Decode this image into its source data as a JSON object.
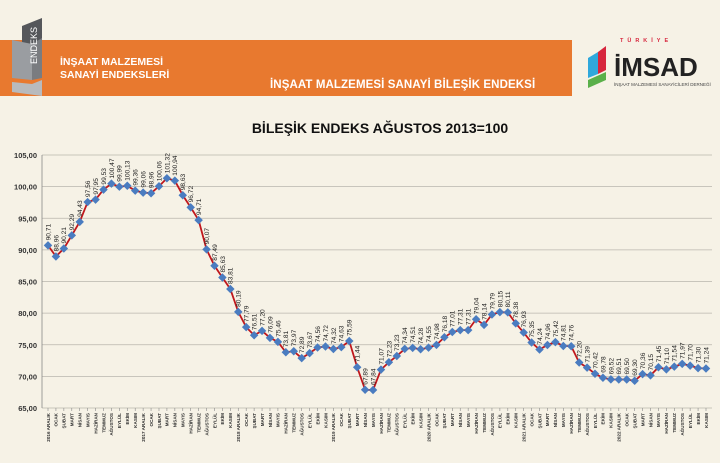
{
  "header": {
    "logo_text": "ENDEKS",
    "subtitle_line1": "İNŞAAT MALZEMESİ",
    "subtitle_line2": "SANAYİ ENDEKSLERİ",
    "band_title": "İNŞAAT MALZEMESİ SANAYİ BİLEŞİK ENDEKSİ",
    "brand_logo_text": "TÜRKİYE İMSAD",
    "brand_logo_caption": "İNŞAAT MALZEMESİ SANAYİCİLERİ DERNEĞİ",
    "accent_color": "#e8792f"
  },
  "chart_data": {
    "type": "line",
    "title": "BİLEŞİK ENDEKS AĞUSTOS 2013=100",
    "xlabel": "",
    "ylabel": "",
    "ylim": [
      65,
      105
    ],
    "yticks": [
      "65,00",
      "70,00",
      "75,00",
      "80,00",
      "85,00",
      "90,00",
      "95,00",
      "100,00",
      "105,00"
    ],
    "grid": true,
    "line_color": "#c0171c",
    "marker_color": "#4a7cc0",
    "categories": [
      "2016 ARALIK",
      "OCAK",
      "ŞUBAT",
      "MART",
      "NİSAN",
      "MAYIS",
      "HAZİRAN",
      "TEMMUZ",
      "AĞUSTOS",
      "EYLÜL",
      "EKİM",
      "KASIM",
      "2017 ARALIK",
      "OCAK",
      "ŞUBAT",
      "MART",
      "NİSAN",
      "MAYIS",
      "HAZİRAN",
      "TEMMUZ",
      "AĞUSTOS",
      "EYLÜL",
      "EKİM",
      "KASIM",
      "2018 ARALIK",
      "OCAK",
      "ŞUBAT",
      "MART",
      "NİSAN",
      "MAYIS",
      "HAZİRAN",
      "TEMMUZ",
      "AĞUSTOS",
      "EYLÜL",
      "EKİM",
      "KASIM",
      "2019 ARALIK",
      "OCAK",
      "ŞUBAT",
      "MART",
      "NİSAN",
      "MAYIS",
      "HAZİRAN",
      "TEMMUZ",
      "AĞUSTOS",
      "EYLÜL",
      "EKİM",
      "KASIM",
      "2020 ARALIK",
      "OCAK",
      "ŞUBAT",
      "MART",
      "NİSAN",
      "MAYIS",
      "HAZİRAN",
      "TEMMUZ",
      "AĞUSTOS",
      "EYLÜL",
      "EKİM",
      "KASIM",
      "2021 ARALIK",
      "OCAK",
      "ŞUBAT",
      "MART",
      "NİSAN",
      "MAYIS",
      "HAZİRAN",
      "TEMMUZ",
      "AĞUSTOS",
      "EYLÜL",
      "EKİM",
      "KASIM",
      "2022 ARALIK",
      "OCAK",
      "ŞUBAT",
      "MART",
      "NİSAN",
      "MAYIS",
      "HAZİRAN",
      "TEMMUZ",
      "AĞUSTOS",
      "EYLÜL",
      "EKİM",
      "KASIM"
    ],
    "values": [
      90.71,
      88.96,
      90.21,
      92.29,
      94.43,
      97.56,
      97.95,
      99.53,
      100.47,
      99.99,
      100.13,
      99.36,
      99.06,
      98.96,
      100.06,
      101.32,
      100.94,
      98.63,
      96.72,
      94.71,
      90.07,
      87.49,
      85.63,
      83.81,
      80.19,
      77.79,
      76.51,
      77.2,
      76.09,
      75.46,
      73.81,
      73.97,
      72.89,
      73.67,
      74.56,
      74.72,
      74.32,
      74.63,
      75.59,
      71.44,
      67.89,
      67.84,
      71.07,
      72.23,
      73.23,
      74.34,
      74.51,
      74.28,
      74.55,
      74.98,
      76.18,
      77.01,
      77.31,
      77.31,
      79.04,
      78.14,
      79.79,
      80.15,
      80.11,
      78.38,
      76.93,
      75.35,
      74.24,
      74.96,
      75.42,
      74.81,
      74.76,
      72.2,
      71.39,
      70.42,
      69.78,
      69.52,
      69.51,
      69.5,
      69.3,
      70.36,
      70.15,
      71.45,
      71.1,
      71.54,
      71.97,
      71.7,
      71.3,
      71.24
    ]
  }
}
